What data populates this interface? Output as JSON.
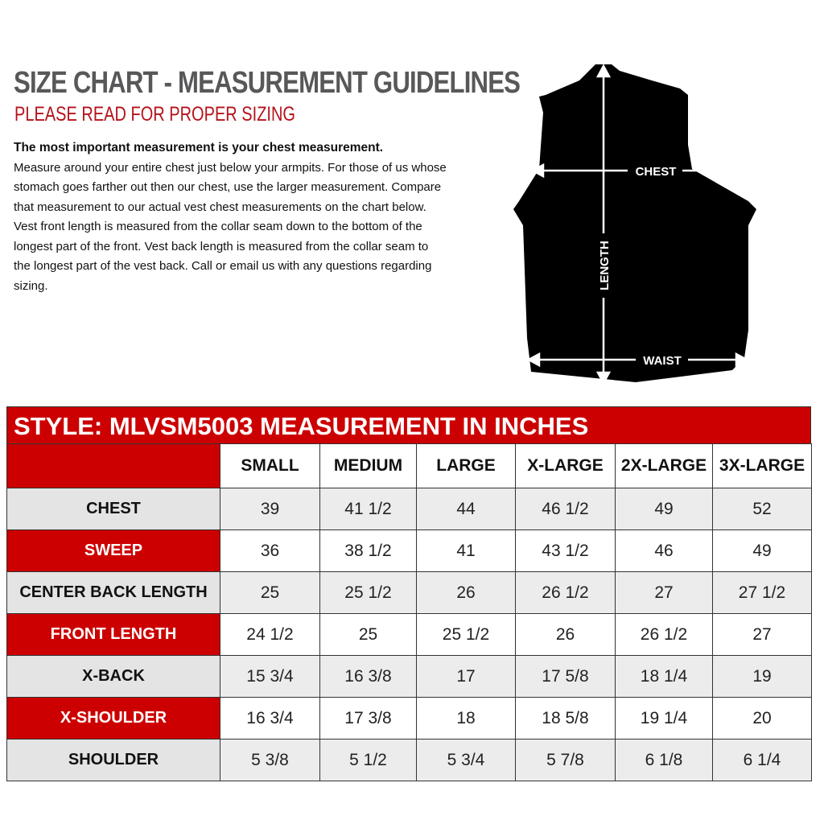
{
  "header": {
    "title": "SIZE CHART - MEASUREMENT GUIDELINES",
    "subtitle": "PLEASE READ FOR PROPER SIZING",
    "intro_bold": "The most important measurement is your chest measurement.",
    "intro_text": "Measure around your entire chest just below your armpits.  For those of us whose stomach goes farther out then our chest, use the larger measurement. Compare that measurement to our actual vest chest measurements on the chart below.  Vest front length is measured from the collar seam down to the bottom of the longest part of the front. Vest back length is measured from the collar seam to the longest part of the vest back.  Call or email us with any questions regarding sizing."
  },
  "diagram": {
    "chest_label": "CHEST",
    "length_label": "LENGTH",
    "waist_label": "WAIST"
  },
  "table": {
    "title": "STYLE: MLVSM5003 MEASUREMENT IN INCHES",
    "columns": [
      "SMALL",
      "MEDIUM",
      "LARGE",
      "X-LARGE",
      "2X-LARGE",
      "3X-LARGE"
    ],
    "rows": [
      {
        "label": "CHEST",
        "values": [
          "39",
          "41 1/2",
          "44",
          "46 1/2",
          "49",
          "52"
        ]
      },
      {
        "label": "SWEEP",
        "values": [
          "36",
          "38 1/2",
          "41",
          "43 1/2",
          "46",
          "49"
        ]
      },
      {
        "label": "CENTER BACK LENGTH",
        "values": [
          "25",
          "25 1/2",
          "26",
          "26 1/2",
          "27",
          "27 1/2"
        ]
      },
      {
        "label": "FRONT LENGTH",
        "values": [
          "24 1/2",
          "25",
          "25 1/2",
          "26",
          "26 1/2",
          "27"
        ]
      },
      {
        "label": "X-BACK",
        "values": [
          "15 3/4",
          "16 3/8",
          "17",
          "17 5/8",
          "18 1/4",
          "19"
        ]
      },
      {
        "label": "X-SHOULDER",
        "values": [
          "16 3/4",
          "17 3/8",
          "18",
          "18 5/8",
          "19 1/4",
          "20"
        ]
      },
      {
        "label": "SHOULDER",
        "values": [
          "5 3/8",
          "5 1/2",
          "5 3/4",
          "5 7/8",
          "6 1/8",
          "6 1/4"
        ]
      }
    ]
  },
  "colors": {
    "accent_red": "#cc0000",
    "title_gray": "#58585a",
    "subtitle_red": "#b5121b"
  }
}
